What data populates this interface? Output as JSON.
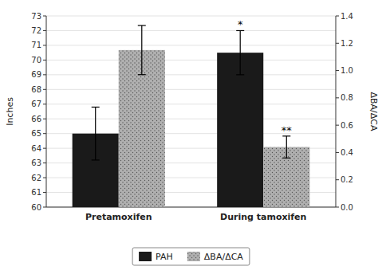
{
  "chart_data": {
    "type": "bar",
    "categories": [
      "Pretamoxifen",
      "During tamoxifen"
    ],
    "series": [
      {
        "name": "PAH",
        "color": "#1a1a1a",
        "values": [
          65.0,
          70.5
        ],
        "errors": [
          1.8,
          1.5
        ]
      },
      {
        "name": "ΔBA/ΔCA",
        "color": "#b0b0b0",
        "values": [
          1.15,
          0.44
        ],
        "errors": [
          0.18,
          0.08
        ],
        "axis": "y2"
      }
    ],
    "ylabel": "Inches",
    "y2label": "ΔBA/ΔCA",
    "ylim": [
      60,
      73
    ],
    "yticks": [
      60,
      61,
      62,
      63,
      64,
      65,
      66,
      67,
      68,
      69,
      70,
      71,
      72,
      73
    ],
    "y2lim": [
      0,
      1.4
    ],
    "y2ticks": [
      {
        "value": 0,
        "label": "0.0"
      },
      0.2,
      0.4,
      0.6,
      0.8,
      {
        "value": 1.0,
        "label": "1.0"
      },
      1.2,
      1.4
    ],
    "annotations": [
      {
        "text": "*",
        "series": "PAH",
        "category": "During tamoxifen"
      },
      {
        "text": "**",
        "series": "ΔBA/ΔCA",
        "category": "During tamoxifen"
      }
    ],
    "grid": true,
    "legend": "bottom"
  }
}
